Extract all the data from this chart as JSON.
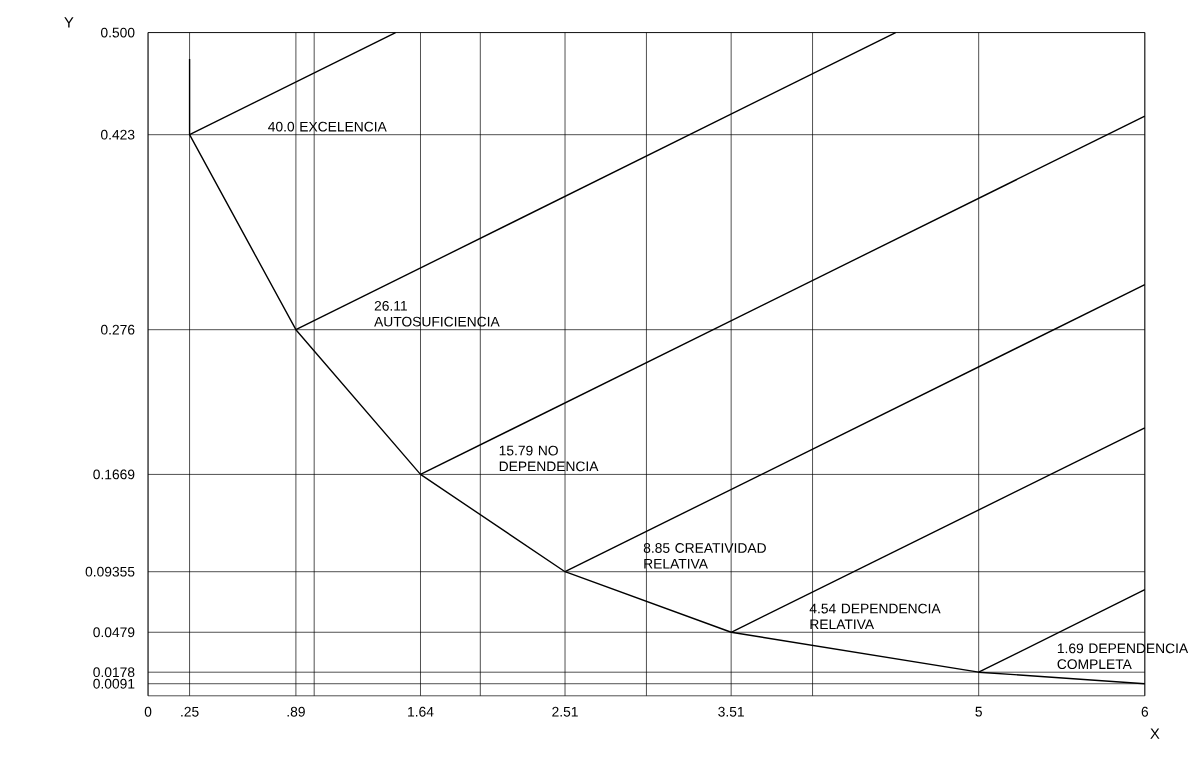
{
  "chart_data": {
    "type": "line",
    "xlabel": "X",
    "ylabel": "Y",
    "xlim": [
      0,
      6
    ],
    "ylim": [
      0,
      0.5
    ],
    "xticks": [
      0,
      {
        "value": 0.25,
        "label": ".25"
      },
      {
        "value": 0.89,
        "label": ".89"
      },
      {
        "value": 1,
        "label": null
      },
      1.64,
      {
        "value": 2,
        "label": null
      },
      2.51,
      {
        "value": 3,
        "label": null
      },
      3.51,
      {
        "value": 4,
        "label": null
      },
      5,
      6
    ],
    "yticks": [
      0.0091,
      0.0178,
      0.0479,
      0.09355,
      0.1669,
      0.276,
      0.423,
      {
        "value": 0.5,
        "label": "0.500"
      }
    ],
    "grid": true,
    "legend": false,
    "marker": "none",
    "line_style": "solid",
    "series": [
      {
        "color": "#000000",
        "x": [
          0.25,
          0.25,
          0.89,
          1.64,
          2.51,
          3.51,
          5,
          6
        ],
        "values": [
          0.48,
          0.423,
          0.276,
          0.1669,
          0.09355,
          0.0479,
          0.0178,
          0.0091
        ]
      },
      {
        "name": "40.0",
        "color": "#000000",
        "x": [
          0.25,
          1.49
        ],
        "values": [
          0.423,
          0.5
        ]
      },
      {
        "name": "26.11",
        "color": "#000000",
        "x": [
          0.89,
          4.5
        ],
        "values": [
          0.276,
          0.5
        ]
      },
      {
        "name": "15.79",
        "color": "#000000",
        "x": [
          1.64,
          6
        ],
        "values": [
          0.1669,
          0.437
        ]
      },
      {
        "name": "8.85",
        "color": "#000000",
        "x": [
          2.51,
          6
        ],
        "values": [
          0.09355,
          0.31
        ]
      },
      {
        "name": "4.54",
        "color": "#000000",
        "x": [
          3.51,
          6
        ],
        "values": [
          0.0479,
          0.202
        ]
      },
      {
        "name": "1.69",
        "color": "#000000",
        "x": [
          5,
          6
        ],
        "values": [
          0.0178,
          0.08
        ]
      }
    ],
    "annotations": [
      "EXCELENCIA",
      "AUTOSUFICIENCIA",
      "NO DEPENDENCIA",
      "CREATIVIDAD RELATIVA",
      "DEPENDENCIA RELATIVA",
      "DEPENDENCIA COMPLETA"
    ]
  }
}
